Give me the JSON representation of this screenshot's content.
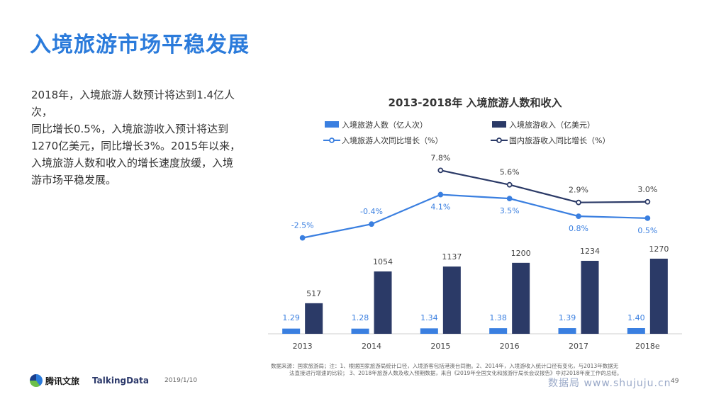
{
  "page": {
    "title": "入境旅游市场平稳发展",
    "summary_lines": [
      "2018年，入境旅游人数预计将达到1.4亿人次，",
      "同比增长0.5%，入境旅游收入预计将达到",
      "1270亿美元，同比增长3%。2015年以来，",
      "入境旅游人数和收入的增长速度放缓，入境",
      "游市场平稳发展。"
    ],
    "source_note_line1": "数据来源：国家旅游局；注：1、根据国家旅游局统计口径，入境游客包括港澳台同胞。2、2014年，入境游收入统计口径有变化，与2013年数据无",
    "source_note_line2": "法直接进行增速的比较；  3、2018年旅游人数及收入预期数据，来自《2019年全国文化和旅游厅局长会议报告》中对2018年度工作的总结。",
    "footer": {
      "logo_text": "腾讯文旅",
      "partner_logo": "TalkingData",
      "date": "2019/1/10",
      "page_number": "49",
      "watermark": "数据局 www.shujuju.cn"
    }
  },
  "chart_data": {
    "type": "bar",
    "title": "2013-2018年 入境旅游人数和收入",
    "categories": [
      "2013",
      "2014",
      "2015",
      "2016",
      "2017",
      "2018e"
    ],
    "legend_position": "top",
    "grid": false,
    "series": [
      {
        "name": "入境旅游人数（亿人次）",
        "type": "bar",
        "color": "#3a7fe0",
        "values": [
          1.29,
          1.28,
          1.34,
          1.38,
          1.39,
          1.4
        ],
        "labels": [
          "1.29",
          "1.28",
          "1.34",
          "1.38",
          "1.39",
          "1.40"
        ]
      },
      {
        "name": "入境旅游收入（亿美元）",
        "type": "bar",
        "color": "#2b3a67",
        "values": [
          517,
          1054,
          1137,
          1200,
          1234,
          1270
        ],
        "labels": [
          "517",
          "1054",
          "1137",
          "1200",
          "1234",
          "1270"
        ]
      },
      {
        "name": "入境旅游人次同比增长（%）",
        "type": "line",
        "color": "#3a7fe0",
        "values": [
          -2.5,
          -0.4,
          4.1,
          3.5,
          0.8,
          0.5
        ],
        "labels": [
          "-2.5%",
          "-0.4%",
          "4.1%",
          "3.5%",
          "0.8%",
          "0.5%"
        ]
      },
      {
        "name": "国内旅游收入同比增长（%）",
        "type": "line",
        "color": "#2b3a67",
        "values": [
          null,
          null,
          7.8,
          5.6,
          2.9,
          3.0
        ],
        "labels": [
          "",
          "",
          "7.8%",
          "5.6%",
          "2.9%",
          "3.0%"
        ]
      }
    ]
  }
}
